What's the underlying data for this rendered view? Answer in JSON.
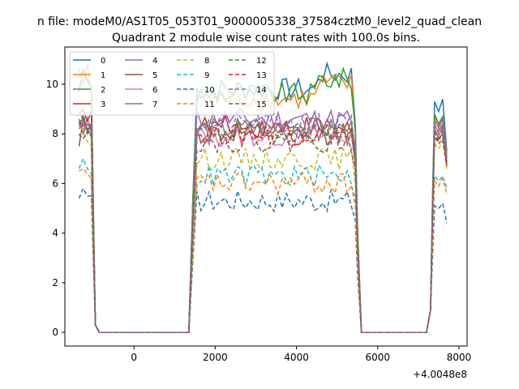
{
  "suptitle": "n file: modeM0/AS1T05_053T01_9000005338_37584cztM0_level2_quad_clean",
  "chart_data": {
    "type": "line",
    "title": "Quadrant 2 module wise count rates with 100.0s bins.",
    "xlabel": "",
    "ylabel": "",
    "x_offset_label": "+4.0048e8",
    "xlim": [
      -1700,
      8200
    ],
    "ylim": [
      -0.55,
      11.5
    ],
    "xticks": [
      0,
      2000,
      4000,
      6000,
      8000
    ],
    "yticks": [
      0,
      2,
      4,
      6,
      8,
      10
    ],
    "grid": false,
    "legend_position": "top-left",
    "x_segments": [
      [
        -1350,
        -650
      ],
      [
        1450,
        5550
      ],
      [
        7250,
        7750
      ]
    ],
    "series": [
      {
        "name": "0",
        "color": "#1f77b4",
        "dash": "solid",
        "level": 9.8,
        "start": [
          9.7,
          10.6,
          10.2,
          9.9
        ],
        "end": [
          9.3,
          8.9,
          9.4,
          7.3
        ]
      },
      {
        "name": "1",
        "color": "#ff7f0e",
        "dash": "solid",
        "level": 9.4,
        "start": [
          10.6,
          10.0,
          10.8,
          9.6
        ],
        "end": [
          8.7,
          8.2,
          8.6,
          7.2
        ]
      },
      {
        "name": "2",
        "color": "#2ca02c",
        "dash": "solid",
        "level": 9.6,
        "start": [
          10.3,
          10.5,
          10.1,
          9.9
        ],
        "end": [
          8.8,
          8.4,
          8.7,
          7.1
        ]
      },
      {
        "name": "3",
        "color": "#d62728",
        "dash": "solid",
        "level": 8.3,
        "start": [
          8.8,
          9.0,
          8.5,
          8.9
        ],
        "end": [
          8.1,
          7.9,
          8.3,
          6.9
        ]
      },
      {
        "name": "4",
        "color": "#9467bd",
        "dash": "solid",
        "level": 8.6,
        "start": [
          8.3,
          8.7,
          8.1,
          8.4
        ],
        "end": [
          8.5,
          8.3,
          8.6,
          7.0
        ]
      },
      {
        "name": "5",
        "color": "#8c564b",
        "dash": "solid",
        "level": 8.0,
        "start": [
          7.5,
          8.6,
          8.2,
          7.9
        ],
        "end": [
          8.2,
          7.8,
          8.0,
          6.8
        ]
      },
      {
        "name": "6",
        "color": "#e377c2",
        "dash": "solid",
        "level": 7.9,
        "start": [
          8.4,
          8.1,
          8.7,
          8.0
        ],
        "end": [
          8.0,
          7.9,
          8.2,
          7.0
        ]
      },
      {
        "name": "7",
        "color": "#7f7f7f",
        "dash": "solid",
        "level": 8.2,
        "start": [
          8.6,
          8.0,
          8.4,
          8.2
        ],
        "end": [
          8.3,
          8.1,
          8.4,
          6.9
        ]
      },
      {
        "name": "8",
        "color": "#bcbd22",
        "dash": "dashed",
        "level": 7.0,
        "start": [
          7.9,
          8.2,
          7.7,
          7.5
        ],
        "end": [
          7.6,
          7.4,
          7.7,
          6.6
        ]
      },
      {
        "name": "9",
        "color": "#17becf",
        "dash": "dashed",
        "level": 6.3,
        "start": [
          6.6,
          7.0,
          6.6,
          6.4
        ],
        "end": [
          6.3,
          6.1,
          6.3,
          5.8
        ]
      },
      {
        "name": "10",
        "color": "#1f77b4",
        "dash": "dashed",
        "level": 5.3,
        "start": [
          5.4,
          5.8,
          5.5,
          5.5
        ],
        "end": [
          5.1,
          5.0,
          5.2,
          4.4
        ]
      },
      {
        "name": "11",
        "color": "#ff7f0e",
        "dash": "dashed",
        "level": 6.0,
        "start": [
          6.5,
          6.6,
          6.4,
          6.2
        ],
        "end": [
          6.1,
          5.9,
          6.2,
          5.6
        ]
      },
      {
        "name": "12",
        "color": "#2ca02c",
        "dash": "dashed",
        "level": 8.1,
        "start": [
          8.4,
          8.8,
          8.2,
          8.3
        ],
        "end": [
          8.1,
          7.8,
          8.0,
          6.8
        ]
      },
      {
        "name": "13",
        "color": "#d62728",
        "dash": "dashed",
        "level": 8.0,
        "start": [
          8.5,
          8.3,
          8.6,
          8.2
        ],
        "end": [
          8.0,
          7.7,
          8.1,
          6.7
        ]
      },
      {
        "name": "14",
        "color": "#9467bd",
        "dash": "dashed",
        "level": 8.4,
        "start": [
          8.2,
          8.5,
          8.0,
          8.3
        ],
        "end": [
          8.4,
          8.0,
          8.2,
          6.9
        ]
      },
      {
        "name": "15",
        "color": "#8c564b",
        "dash": "dashed",
        "level": 7.7,
        "start": [
          8.0,
          7.8,
          8.1,
          7.9
        ],
        "end": [
          7.9,
          7.6,
          7.8,
          6.7
        ]
      }
    ]
  }
}
